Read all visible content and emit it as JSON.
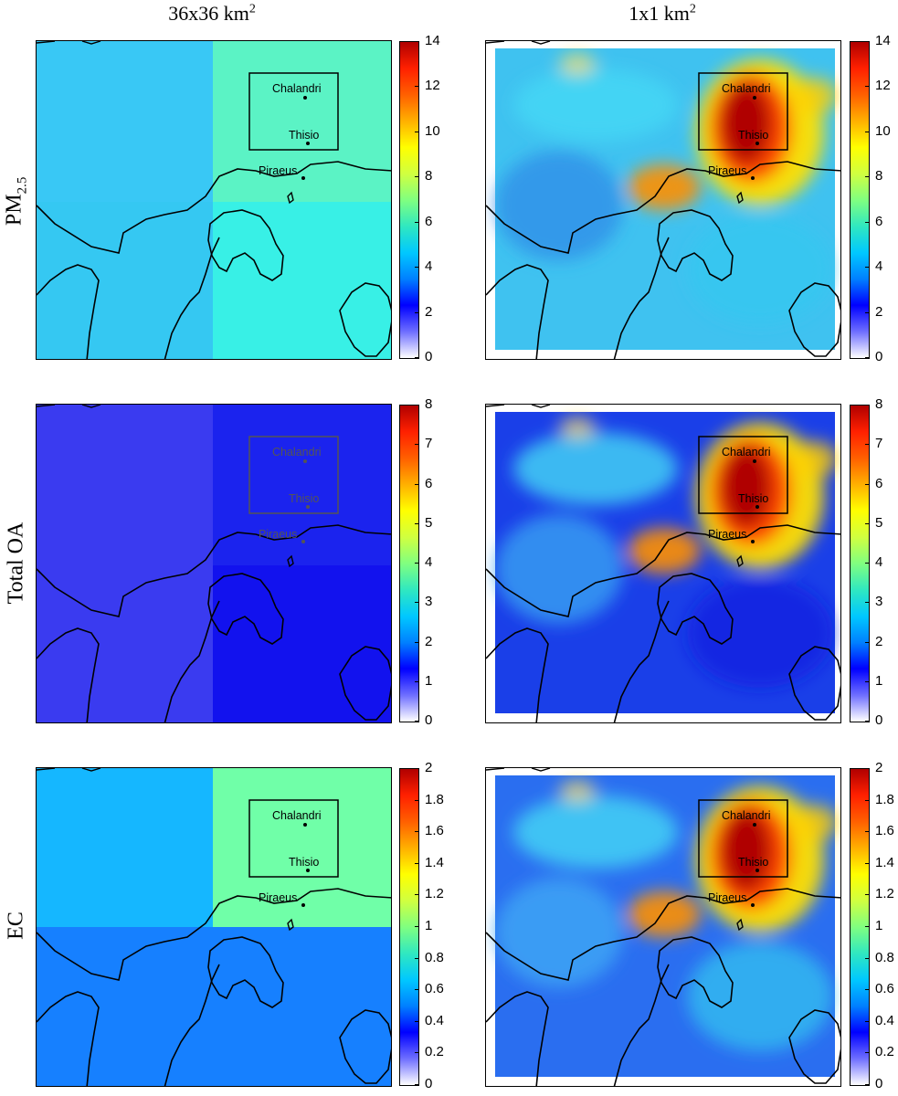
{
  "columns": [
    {
      "label": "36x36 km",
      "sup": "2"
    },
    {
      "label": "1x1 km",
      "sup": "2"
    }
  ],
  "rows": [
    {
      "label": "PM",
      "sub": "2.5",
      "ticks": [
        "14",
        "12",
        "10",
        "8",
        "6",
        "4",
        "2",
        "0"
      ],
      "vmax": 14
    },
    {
      "label": "Total OA",
      "sub": "",
      "ticks": [
        "8",
        "7",
        "6",
        "5",
        "4",
        "3",
        "2",
        "1",
        "0"
      ],
      "vmax": 8
    },
    {
      "label": "EC",
      "sub": "",
      "ticks": [
        "2",
        "1.8",
        "1.6",
        "1.4",
        "1.2",
        "1",
        "0.8",
        "0.6",
        "0.4",
        "0.2",
        "0"
      ],
      "vmax": 2
    }
  ],
  "cities": [
    "Chalandri",
    "Thisio",
    "Piraeus"
  ],
  "colors": {
    "cbar": [
      "#ffffff",
      "#6f6fff",
      "#0000ff",
      "#0080ff",
      "#00c8ff",
      "#30e8c0",
      "#80ff80",
      "#d0ff40",
      "#ffff00",
      "#ffb000",
      "#ff6000",
      "#ff2000",
      "#b00000"
    ],
    "coarse": [
      [
        "#39c8f5",
        "#5bf3c5",
        "#35c8f2",
        "#38f0e6"
      ],
      [
        "#3a3bf0",
        "#1b23ee",
        "#3a3bf0",
        "#1212ee"
      ],
      [
        "#15b7ff",
        "#70ffa8",
        "#1680ff",
        "#1680ff"
      ]
    ]
  }
}
